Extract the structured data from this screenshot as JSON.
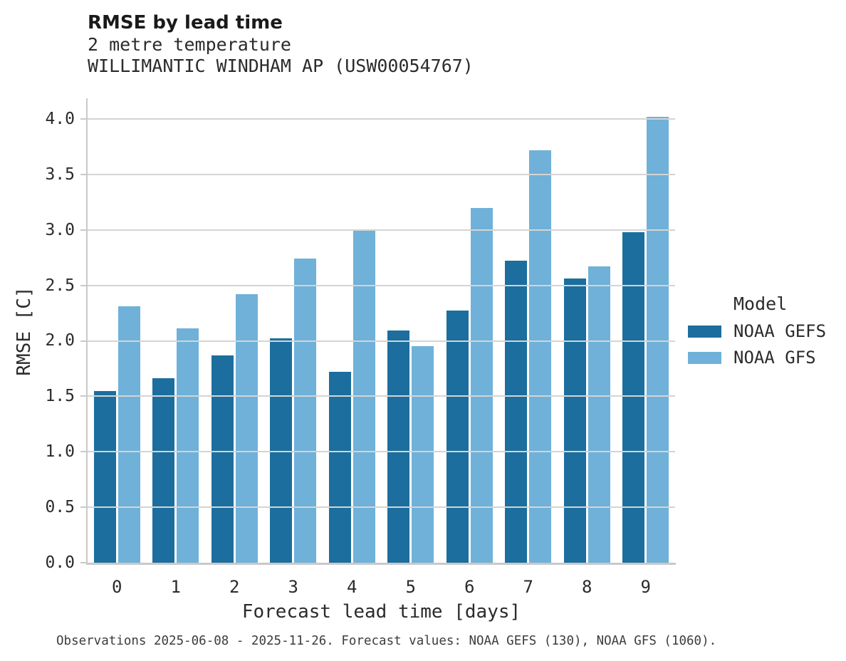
{
  "header": {
    "title": "RMSE by lead time",
    "subtitle1": "2 metre temperature",
    "subtitle2": "WILLIMANTIC WINDHAM AP (USW00054767)"
  },
  "chart_data": {
    "type": "bar",
    "title": "RMSE by lead time",
    "subtitle": [
      "2 metre temperature",
      "WILLIMANTIC WINDHAM AP (USW00054767)"
    ],
    "categories": [
      "0",
      "1",
      "2",
      "3",
      "4",
      "5",
      "6",
      "7",
      "8",
      "9"
    ],
    "series": [
      {
        "name": "NOAA GEFS",
        "color": "#1b6e9d",
        "values": [
          1.55,
          1.66,
          1.87,
          2.02,
          1.72,
          2.09,
          2.27,
          2.72,
          2.56,
          2.98
        ]
      },
      {
        "name": "NOAA GFS",
        "color": "#6fb1d8",
        "values": [
          2.31,
          2.11,
          2.42,
          2.74,
          2.99,
          1.95,
          3.2,
          3.72,
          2.67,
          4.02
        ]
      }
    ],
    "xlabel": "Forecast lead time [days]",
    "ylabel": "RMSE [C]",
    "ylim": [
      0,
      4.186
    ],
    "yticks": [
      "0.0",
      "0.5",
      "1.0",
      "1.5",
      "2.0",
      "2.5",
      "3.0",
      "3.5",
      "4.0"
    ],
    "grid": true,
    "legend_title": "Model",
    "legend_position": "center-right"
  },
  "legend": {
    "title": "Model",
    "entries": [
      {
        "label": "NOAA GEFS",
        "color": "#1b6e9d"
      },
      {
        "label": "NOAA GFS",
        "color": "#6fb1d8"
      }
    ]
  },
  "footer": {
    "note": "Observations 2025-06-08 - 2025-11-26. Forecast values: NOAA GEFS (130), NOAA GFS (1060)."
  }
}
